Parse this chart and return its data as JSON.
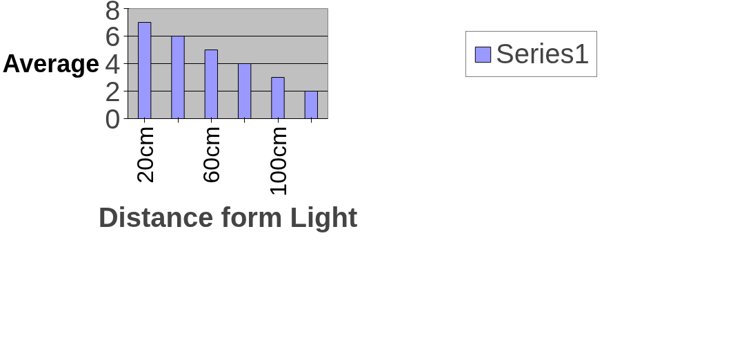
{
  "chart_data": {
    "type": "bar",
    "xlabel": "Distance form Light",
    "ylabel": "Average",
    "categories": [
      "20cm",
      null,
      "60cm",
      null,
      "100cm",
      null
    ],
    "series": [
      {
        "name": "Series1",
        "color": "#9999ff",
        "values": [
          7,
          6,
          5,
          4,
          3,
          2
        ]
      }
    ],
    "ylim": [
      0,
      8
    ],
    "yticks": [
      0,
      2,
      4,
      6,
      8
    ],
    "grid": "y",
    "legend": "right"
  }
}
